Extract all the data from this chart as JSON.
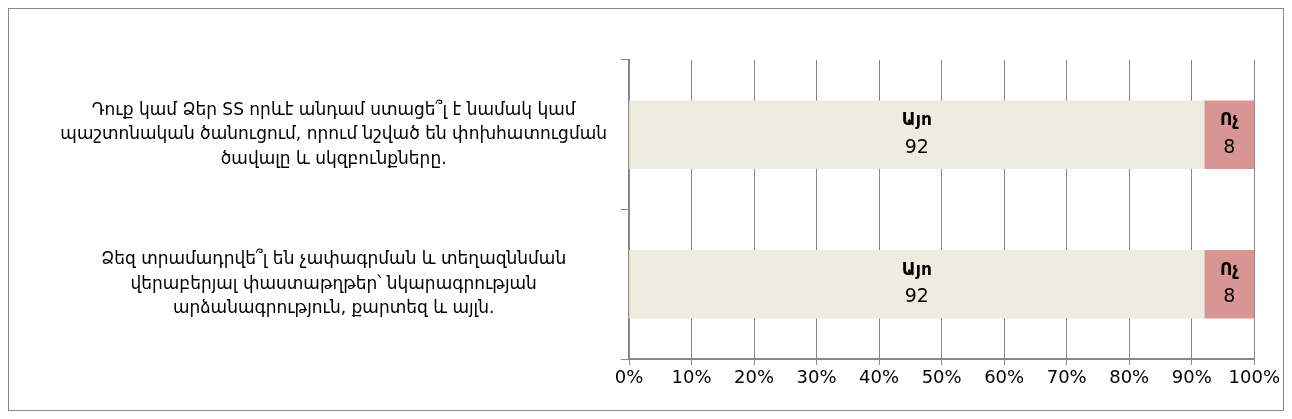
{
  "chart_data": {
    "type": "bar",
    "orientation": "horizontal",
    "stacked": true,
    "categories": [
      "Դուք կամ Ձեր SS որևէ անդամ ստացե՞լ է նամակ կամ պաշտոնական ծանուցում, որում նշված են փոխհատուցման ծավալը և սկզբունքները.",
      "Ձեզ տրամադրվե՞լ են չափագրման և տեղազննման վերաբերյալ փաստաթղթեր՝ նկարագրության արձանագրություն, քարտեզ և այլն."
    ],
    "series": [
      {
        "name": "Այո",
        "color": "#eeece1",
        "values": [
          92,
          92
        ]
      },
      {
        "name": "Ոչ",
        "color": "#d99594",
        "values": [
          8,
          8
        ]
      }
    ],
    "xlim": [
      0,
      100
    ],
    "xticks": [
      {
        "value": 0,
        "label": "0%"
      },
      {
        "value": 10,
        "label": "10%"
      },
      {
        "value": 20,
        "label": "20%"
      },
      {
        "value": 30,
        "label": "30%"
      },
      {
        "value": 40,
        "label": "40%"
      },
      {
        "value": 50,
        "label": "50%"
      },
      {
        "value": 60,
        "label": "60%"
      },
      {
        "value": 70,
        "label": "70%"
      },
      {
        "value": 80,
        "label": "80%"
      },
      {
        "value": 90,
        "label": "90%"
      },
      {
        "value": 100,
        "label": "100%"
      }
    ],
    "grid": "x",
    "legend": false,
    "data_labels": true
  }
}
